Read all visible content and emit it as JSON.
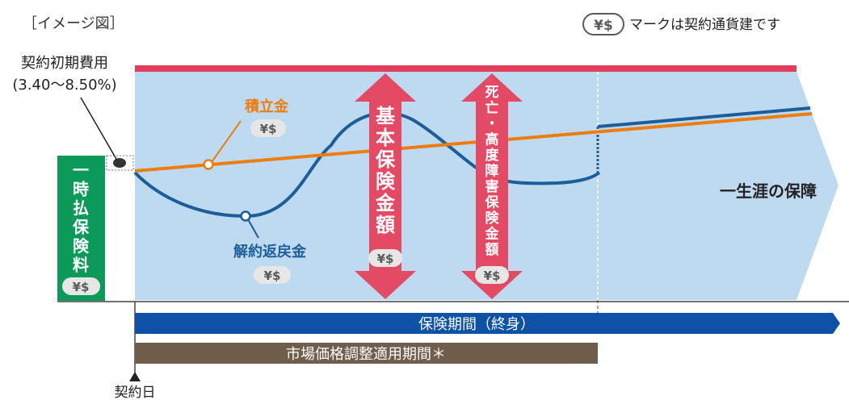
{
  "image_label": "［イメージ図］",
  "currency_mark": "¥$",
  "currency_note": "マークは契約通貨建です",
  "initial_cost": {
    "label": "契約初期費用",
    "range": "(3.40〜8.50%)"
  },
  "premium": {
    "chars": [
      "一",
      "時",
      "払",
      "保",
      "険",
      "料"
    ]
  },
  "accumulation": {
    "label": "積立金"
  },
  "surrender": {
    "label": "解約返戻金"
  },
  "basic_benefit": {
    "chars": [
      "基",
      "本",
      "保",
      "険",
      "金",
      "額"
    ]
  },
  "death_benefit": {
    "chars": [
      "死",
      "亡",
      "・",
      "高",
      "度",
      "障",
      "害",
      "保",
      "険",
      "金",
      "額"
    ]
  },
  "lifetime_label": "一生涯の保障",
  "insurance_period": "保険期間（終身）",
  "mva_period": "市場価格調整適用期間＊",
  "contract_day": "契約日",
  "colors": {
    "panel": "#bedaf0",
    "top_line": "#e23d5b",
    "accumulation_line": "#ed7d0e",
    "surrender_line": "#1b5e9a",
    "benefit_arrow": "#e44a63",
    "premium_box": "#0c9a5a",
    "period_bar": "#0d52a6",
    "mva_bar": "#715d4c",
    "badge_bg": "#e6e6e6",
    "badge_text": "#5a5a5a"
  }
}
